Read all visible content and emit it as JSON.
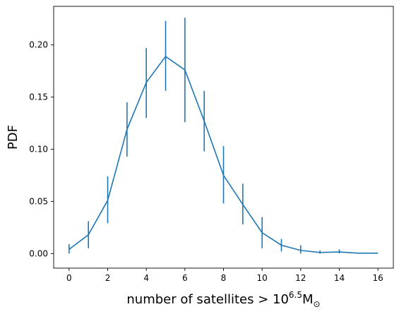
{
  "chart_data": {
    "type": "line",
    "xlabel": "number of satellites > 10",
    "xlabel_superscript": "6.5",
    "xlabel_unit": "M",
    "xlabel_unit_subscript": "⊙",
    "ylabel": "PDF",
    "xlim": [
      -0.8,
      16.8
    ],
    "ylim": [
      -0.014,
      0.237
    ],
    "xticks": [
      0,
      2,
      4,
      6,
      8,
      10,
      12,
      14,
      16
    ],
    "xtick_labels": [
      "0",
      "2",
      "4",
      "6",
      "8",
      "10",
      "12",
      "14",
      "16"
    ],
    "yticks": [
      0.0,
      0.05,
      0.1,
      0.15,
      0.2
    ],
    "ytick_labels": [
      "0.00",
      "0.05",
      "0.10",
      "0.15",
      "0.20"
    ],
    "grid": false,
    "series": [
      {
        "color": "#1f77b4",
        "x": [
          0,
          1,
          2,
          3,
          4,
          5,
          6,
          7,
          8,
          9,
          10,
          11,
          12,
          13,
          14,
          15,
          16
        ],
        "values": [
          0.004,
          0.018,
          0.051,
          0.119,
          0.164,
          0.189,
          0.176,
          0.127,
          0.075,
          0.047,
          0.02,
          0.008,
          0.003,
          0.001,
          0.0015,
          0.0003,
          0.0003
        ],
        "err_low": [
          0.004,
          0.013,
          0.022,
          0.026,
          0.034,
          0.033,
          0.05,
          0.029,
          0.027,
          0.019,
          0.015,
          0.006,
          0.003,
          0.001,
          0.0015,
          0.0,
          0.0
        ],
        "err_high": [
          0.005,
          0.013,
          0.023,
          0.026,
          0.033,
          0.034,
          0.05,
          0.029,
          0.028,
          0.02,
          0.015,
          0.006,
          0.005,
          0.002,
          0.0025,
          0.0,
          0.0
        ]
      }
    ]
  }
}
